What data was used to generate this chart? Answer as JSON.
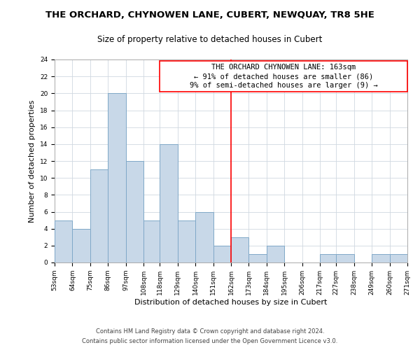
{
  "title": "THE ORCHARD, CHYNOWEN LANE, CUBERT, NEWQUAY, TR8 5HE",
  "subtitle": "Size of property relative to detached houses in Cubert",
  "xlabel": "Distribution of detached houses by size in Cubert",
  "ylabel": "Number of detached properties",
  "bin_edges": [
    53,
    64,
    75,
    86,
    97,
    108,
    118,
    129,
    140,
    151,
    162,
    173,
    184,
    195,
    206,
    217,
    227,
    238,
    249,
    260,
    271
  ],
  "counts": [
    5,
    4,
    11,
    20,
    12,
    5,
    14,
    5,
    6,
    2,
    3,
    1,
    2,
    0,
    0,
    1,
    1,
    0,
    1,
    1
  ],
  "bar_color": "#c8d8e8",
  "bar_edge_color": "#7fa8c8",
  "red_line_x": 162,
  "ylim": [
    0,
    24
  ],
  "yticks": [
    0,
    2,
    4,
    6,
    8,
    10,
    12,
    14,
    16,
    18,
    20,
    22,
    24
  ],
  "annotation_title": "THE ORCHARD CHYNOWEN LANE: 163sqm",
  "annotation_line1": "← 91% of detached houses are smaller (86)",
  "annotation_line2": "9% of semi-detached houses are larger (9) →",
  "footer1": "Contains HM Land Registry data © Crown copyright and database right 2024.",
  "footer2": "Contains public sector information licensed under the Open Government Licence v3.0.",
  "background_color": "#ffffff",
  "grid_color": "#d0d8e0",
  "title_fontsize": 9.5,
  "subtitle_fontsize": 8.5,
  "xlabel_fontsize": 8,
  "ylabel_fontsize": 8,
  "tick_label_fontsize": 6.5,
  "annotation_fontsize": 7.5,
  "footer_fontsize": 6
}
